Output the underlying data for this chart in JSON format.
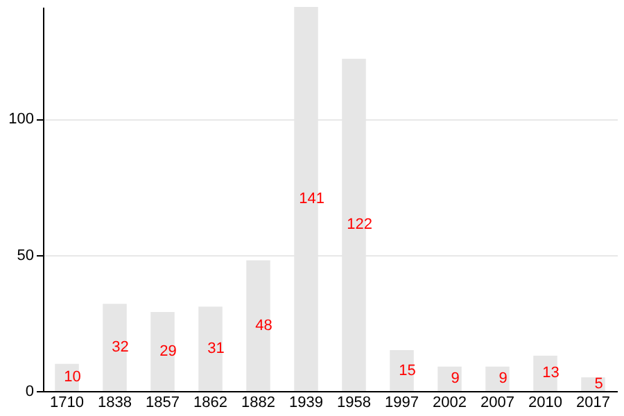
{
  "chart_data": {
    "type": "bar",
    "categories": [
      "1710",
      "1838",
      "1857",
      "1862",
      "1882",
      "1939",
      "1958",
      "1997",
      "2002",
      "2007",
      "2010",
      "2017"
    ],
    "values": [
      10,
      32,
      29,
      31,
      48,
      141,
      122,
      15,
      9,
      9,
      13,
      5
    ],
    "color": "#e6e6e6",
    "ylim": [
      0,
      141
    ],
    "yticks": [
      0,
      50,
      100
    ],
    "grid": "y",
    "data_labels": true
  }
}
